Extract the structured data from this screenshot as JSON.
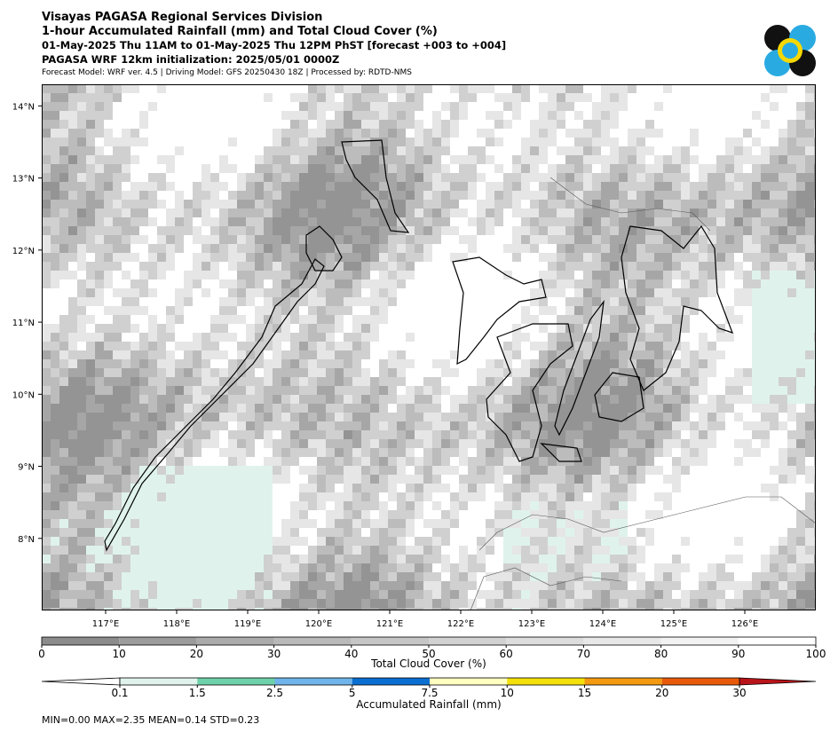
{
  "header": {
    "lines": [
      "Visayas PAGASA Regional Services Division",
      "1-hour Accumulated Rainfall (mm) and Total Cloud Cover (%)",
      "01-May-2025 Thu 11AM to 01-May-2025 Thu 12PM PhST [forecast +003 to +004]",
      "PAGASA WRF 12km initialization: 2025/05/01 0000Z"
    ],
    "note": "Forecast Model: WRF ver. 4.5 | Driving Model: GFS 20250430 18Z | Processed by: RDTD-NMS"
  },
  "map": {
    "xlim": [
      116.1,
      127.0
    ],
    "ylim": [
      7.0,
      14.3
    ],
    "xticks": [
      {
        "value": 117,
        "label": "117°E"
      },
      {
        "value": 118,
        "label": "118°E"
      },
      {
        "value": 119,
        "label": "119°E"
      },
      {
        "value": 120,
        "label": "120°E"
      },
      {
        "value": 121,
        "label": "121°E"
      },
      {
        "value": 122,
        "label": "122°E"
      },
      {
        "value": 123,
        "label": "123°E"
      },
      {
        "value": 124,
        "label": "124°E"
      },
      {
        "value": 125,
        "label": "125°E"
      },
      {
        "value": 126,
        "label": "126°E"
      }
    ],
    "yticks": [
      {
        "value": 8,
        "label": "8°N"
      },
      {
        "value": 9,
        "label": "9°N"
      },
      {
        "value": 10,
        "label": "10°N"
      },
      {
        "value": 11,
        "label": "11°N"
      },
      {
        "value": 12,
        "label": "12°N"
      },
      {
        "value": 13,
        "label": "13°N"
      },
      {
        "value": 14,
        "label": "14°N"
      }
    ]
  },
  "cloud_colorbar": {
    "label": "Total Cloud Cover (%)",
    "ticks": [
      0,
      10,
      20,
      30,
      40,
      50,
      60,
      70,
      80,
      90,
      100
    ],
    "colors": [
      "#8c8c8c",
      "#9c9c9c",
      "#ababab",
      "#b9b9b9",
      "#c6c6c6",
      "#d2d2d2",
      "#dddddd",
      "#e8e8e8",
      "#f2f2f2",
      "#ffffff"
    ]
  },
  "rain_colorbar": {
    "label": "Accumulated Rainfall (mm)",
    "ticks": [
      0.1,
      1.5,
      2.5,
      5,
      7.5,
      10,
      15,
      20,
      30
    ],
    "colors": [
      "#dff3ec",
      "#6fd1a9",
      "#6fb4ea",
      "#0a6fd0",
      "#ffffc0",
      "#f4e00a",
      "#f49a10",
      "#e85a0a"
    ],
    "under_color": "#ffffff",
    "over_color": "#b8141a"
  },
  "footer": "MIN=0.00   MAX=2.35   MEAN=0.14   STD=0.23"
}
